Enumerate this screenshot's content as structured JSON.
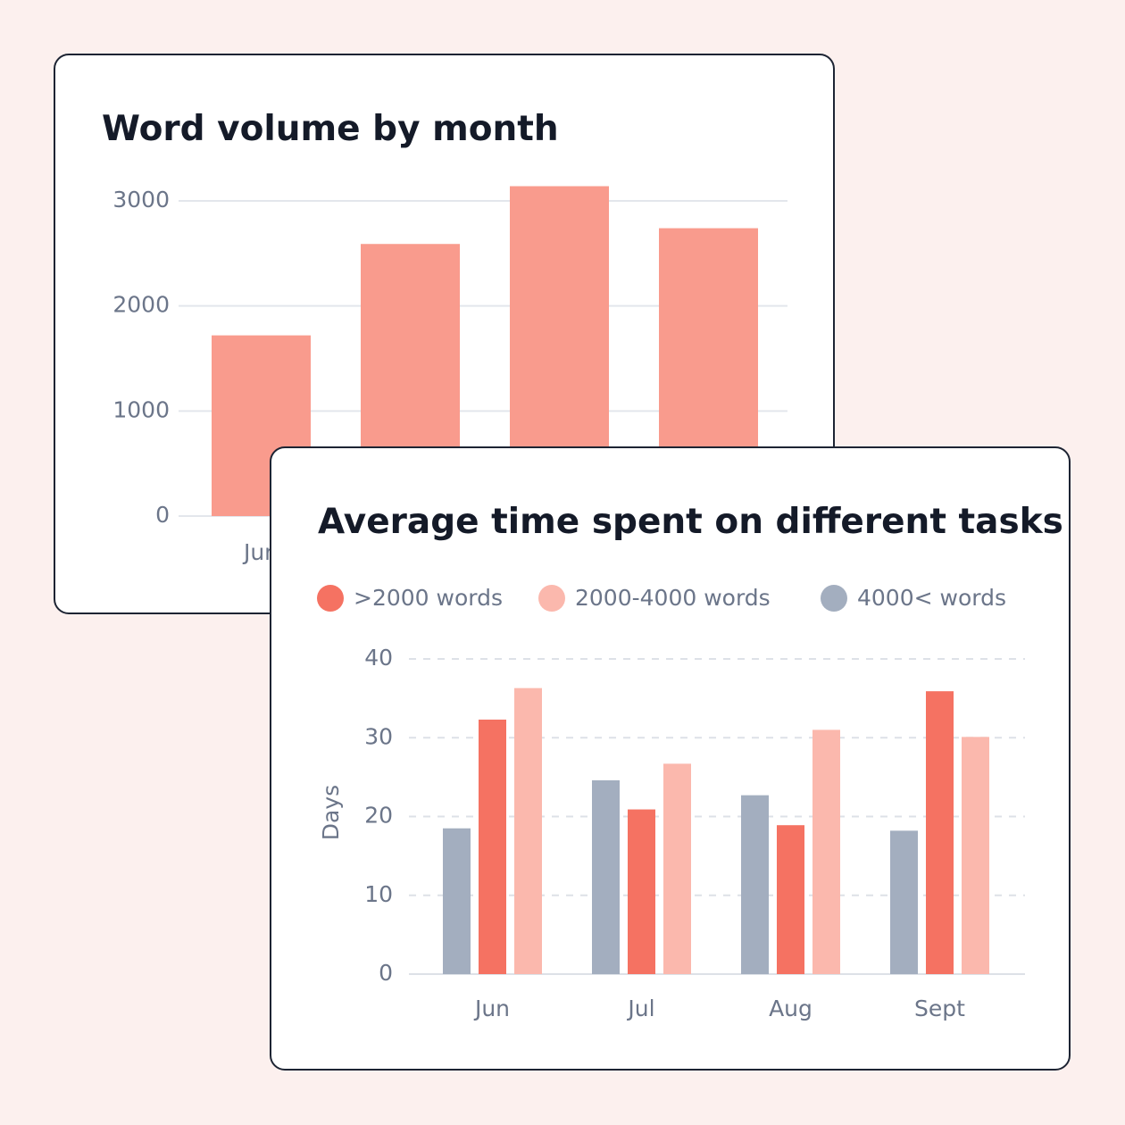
{
  "chart_data": [
    {
      "type": "bar",
      "title": "Word volume by month",
      "categories": [
        "Jun",
        null,
        null,
        null
      ],
      "values": [
        1720,
        2590,
        3140,
        2740
      ],
      "color": "#f99b8d",
      "ylim": [
        0,
        3200
      ],
      "yticks": [
        0,
        1000,
        2000,
        3000
      ],
      "grid": true
    },
    {
      "type": "grouped-bar",
      "title": "Average time spent on different tasks",
      "categories": [
        "Jun",
        "Jul",
        "Aug",
        "Sept"
      ],
      "y_label": "Days",
      "series": [
        {
          "name": ">2000 words",
          "color": "#f57262",
          "values": [
            32.3,
            20.9,
            18.9,
            35.9
          ]
        },
        {
          "name": "2000-4000 words",
          "color": "#fbb8ad",
          "values": [
            36.3,
            26.7,
            31.0,
            30.1
          ]
        },
        {
          "name": "4000< words",
          "color": "#a3aebf",
          "values": [
            18.5,
            24.6,
            22.7,
            18.2
          ]
        }
      ],
      "ylim": [
        0,
        40
      ],
      "yticks": [
        0,
        10,
        20,
        30,
        40
      ],
      "grid": true,
      "legend": "top-left"
    }
  ]
}
